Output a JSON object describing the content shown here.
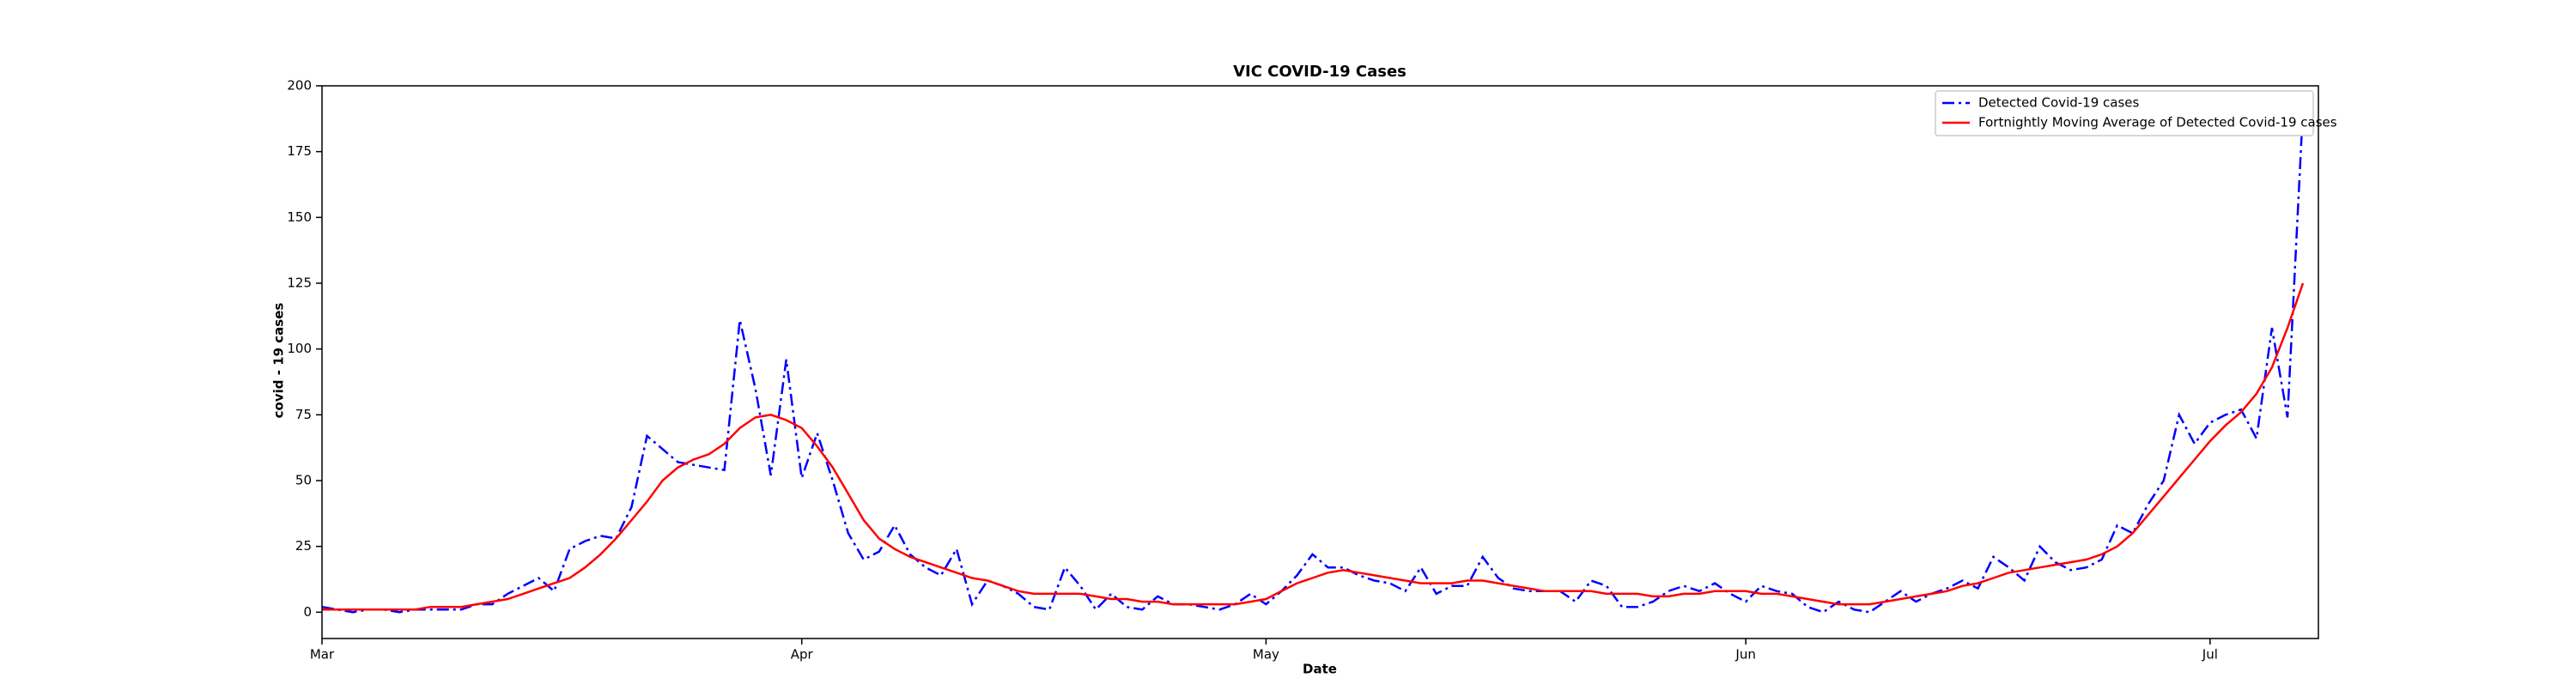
{
  "chart_data": {
    "type": "line",
    "title": "VIC COVID-19 Cases",
    "xlabel": "Date",
    "ylabel": "covid - 19 cases",
    "x": [
      0,
      1,
      2,
      3,
      4,
      5,
      6,
      7,
      8,
      9,
      10,
      11,
      12,
      13,
      14,
      15,
      16,
      17,
      18,
      19,
      20,
      21,
      22,
      23,
      24,
      25,
      26,
      27,
      28,
      29,
      30,
      31,
      32,
      33,
      34,
      35,
      36,
      37,
      38,
      39,
      40,
      41,
      42,
      43,
      44,
      45,
      46,
      47,
      48,
      49,
      50,
      51,
      52,
      53,
      54,
      55,
      56,
      57,
      58,
      59,
      60,
      61,
      62,
      63,
      64,
      65,
      66,
      67,
      68,
      69,
      70,
      71,
      72,
      73,
      74,
      75,
      76,
      77,
      78,
      79,
      80,
      81,
      82,
      83,
      84,
      85,
      86,
      87,
      88,
      89,
      90,
      91,
      92,
      93,
      94,
      95,
      96,
      97,
      98,
      99,
      100,
      101,
      102,
      103,
      104,
      105,
      106,
      107,
      108,
      109,
      110,
      111,
      112,
      113,
      114,
      115,
      116,
      117,
      118,
      119,
      120,
      121,
      122,
      123,
      124,
      125,
      126,
      127,
      128
    ],
    "series": [
      {
        "name": "Detected Covid-19 cases",
        "color": "#0000ff",
        "style": "dashdot",
        "values": [
          2,
          1,
          0,
          1,
          1,
          0,
          1,
          1,
          1,
          1,
          3,
          3,
          7,
          10,
          13,
          8,
          24,
          27,
          29,
          28,
          40,
          67,
          62,
          57,
          56,
          55,
          54,
          111,
          85,
          52,
          96,
          51,
          68,
          50,
          30,
          20,
          23,
          33,
          22,
          17,
          14,
          24,
          3,
          12,
          10,
          7,
          2,
          1,
          17,
          10,
          1,
          7,
          2,
          1,
          6,
          3,
          3,
          2,
          1,
          3,
          7,
          3,
          8,
          14,
          22,
          17,
          17,
          14,
          12,
          11,
          8,
          17,
          7,
          10,
          10,
          21,
          13,
          9,
          8,
          8,
          8,
          4,
          12,
          10,
          2,
          2,
          4,
          8,
          10,
          8,
          11,
          7,
          4,
          10,
          8,
          7,
          2,
          0,
          4,
          1,
          0,
          4,
          8,
          4,
          7,
          9,
          12,
          9,
          21,
          17,
          12,
          25,
          19,
          16,
          17,
          20,
          33,
          30,
          41,
          50,
          75,
          64,
          72,
          75,
          77,
          66,
          108,
          74,
          191
        ]
      },
      {
        "name": "Fortnightly Moving Average of Detected Covid-19 cases",
        "color": "#ff0000",
        "style": "solid",
        "values": [
          1,
          1,
          1,
          1,
          1,
          1,
          1,
          2,
          2,
          2,
          3,
          4,
          5,
          7,
          9,
          11,
          13,
          17,
          22,
          28,
          35,
          42,
          50,
          55,
          58,
          60,
          64,
          70,
          74,
          75,
          73,
          70,
          63,
          55,
          45,
          35,
          28,
          24,
          21,
          19,
          17,
          15,
          13,
          12,
          10,
          8,
          7,
          7,
          7,
          7,
          6,
          5,
          5,
          4,
          4,
          3,
          3,
          3,
          3,
          3,
          4,
          5,
          8,
          11,
          13,
          15,
          16,
          15,
          14,
          13,
          12,
          11,
          11,
          11,
          12,
          12,
          11,
          10,
          9,
          8,
          8,
          8,
          8,
          7,
          7,
          7,
          6,
          6,
          7,
          7,
          8,
          8,
          8,
          7,
          7,
          6,
          5,
          4,
          3,
          3,
          3,
          4,
          5,
          6,
          7,
          8,
          10,
          11,
          13,
          15,
          16,
          17,
          18,
          19,
          20,
          22,
          25,
          30,
          37,
          44,
          51,
          58,
          65,
          71,
          76,
          83,
          93,
          108,
          125
        ]
      }
    ],
    "xlim": [
      0,
      129
    ],
    "xticks": [
      {
        "value": 0,
        "label": "Mar"
      },
      {
        "value": 31,
        "label": "Apr"
      },
      {
        "value": 61,
        "label": "May"
      },
      {
        "value": 92,
        "label": "Jun"
      },
      {
        "value": 122,
        "label": "Jul"
      }
    ],
    "ylim": [
      -10,
      200
    ],
    "yticks": [
      0,
      25,
      50,
      75,
      100,
      125,
      150,
      175,
      200
    ],
    "grid": false,
    "legend": "upper right"
  }
}
